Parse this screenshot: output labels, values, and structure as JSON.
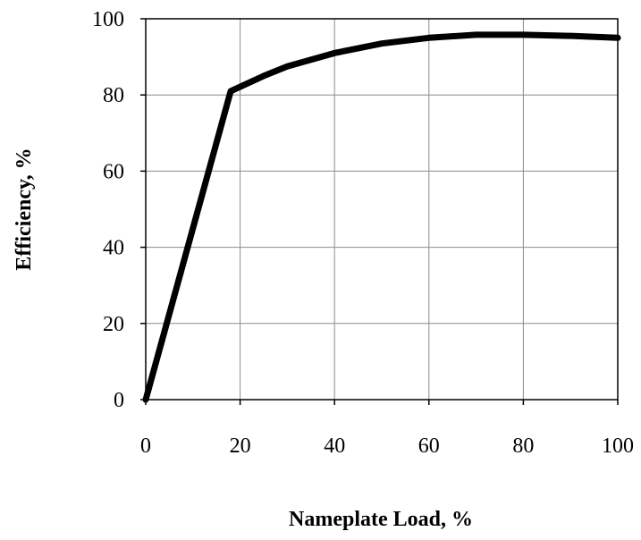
{
  "chart_data": {
    "type": "line",
    "title": "",
    "xlabel": "Nameplate Load, %",
    "ylabel": "Efficiency, %",
    "xlim": [
      0,
      100
    ],
    "ylim": [
      0,
      100
    ],
    "x_ticks": [
      "0",
      "20",
      "40",
      "60",
      "80",
      "100"
    ],
    "y_ticks": [
      "0",
      "20",
      "40",
      "60",
      "80",
      "100"
    ],
    "grid": true,
    "legend": "none",
    "series": [
      {
        "color": "#000000",
        "x": [
          0,
          18,
          25,
          30,
          40,
          50,
          60,
          70,
          80,
          90,
          100
        ],
        "y": [
          0,
          81,
          85,
          87.5,
          91,
          93.5,
          95,
          95.8,
          95.8,
          95.5,
          95
        ]
      }
    ]
  }
}
